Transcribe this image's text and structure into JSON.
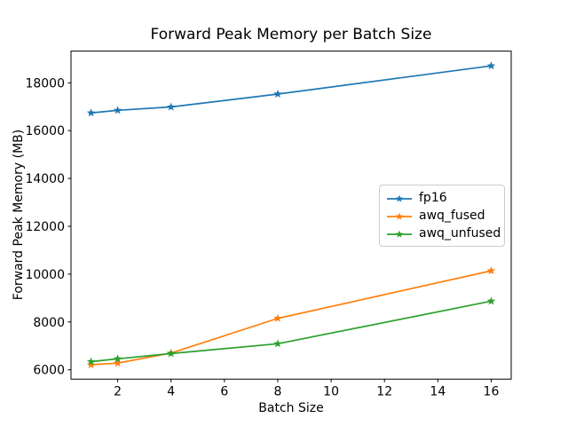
{
  "chart_data": {
    "type": "line",
    "title": "Forward Peak Memory per Batch Size",
    "xlabel": "Batch Size",
    "ylabel": "Forward Peak Memory (MB)",
    "x": [
      1,
      2,
      4,
      8,
      16
    ],
    "series": [
      {
        "name": "fp16",
        "color": "#1f77b4",
        "values": [
          16740,
          16850,
          16990,
          17530,
          18710
        ]
      },
      {
        "name": "awq_fused",
        "color": "#ff7f0e",
        "values": [
          6210,
          6280,
          6700,
          8150,
          10140
        ]
      },
      {
        "name": "awq_unfused",
        "color": "#2ca02c",
        "values": [
          6340,
          6460,
          6680,
          7090,
          8870
        ]
      }
    ],
    "marker": "star",
    "xlim": [
      0.25,
      16.75
    ],
    "ylim": [
      5610,
      19325
    ],
    "xticks": [
      2,
      4,
      6,
      8,
      10,
      12,
      14,
      16
    ],
    "yticks": [
      6000,
      8000,
      10000,
      12000,
      14000,
      16000,
      18000
    ],
    "grid": false,
    "legend_position": "center-right",
    "axis_color": "#000000",
    "background": "#ffffff"
  }
}
